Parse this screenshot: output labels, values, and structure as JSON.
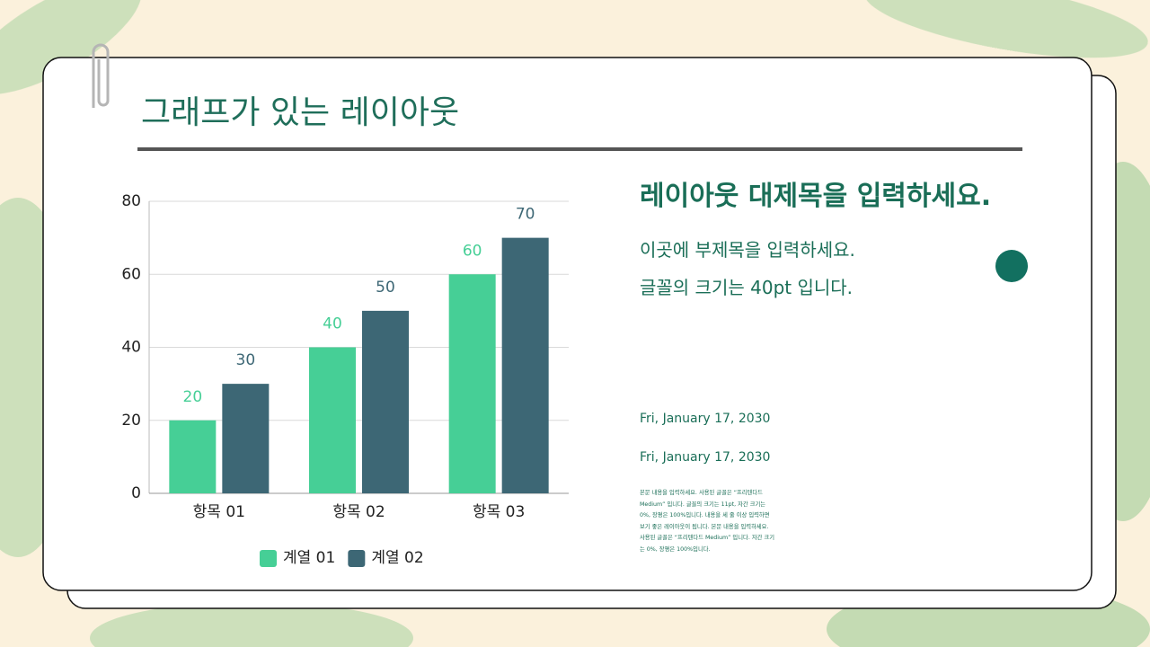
{
  "slide": {
    "title": "그래프가 있는 레이아웃",
    "heading": "레이아웃 대제목을 입력하세요.",
    "subtitle_lines": [
      "이곳에 부제목을 입력하세요.",
      "글꼴의 크기는 40pt 입니다."
    ],
    "dates": [
      "Fri, January 17, 2030",
      "Fri, January 17, 2030"
    ],
    "body": "본문 내용을 입력하세요. 사용된 글꼴은 “프리텐다드 Medium” 입니다. 글꼴의 크기는 11pt, 자간 크기는 0%, 장평은 100%입니다. 내용을 세 줄 이상 입력하면 보기 좋은 레이아웃이 됩니다. 본문 내용을 입력하세요. 사용된 글꼴은 “프리텐다드 Medium” 입니다. 자간 크기는 0%, 장평은 100%입니다."
  },
  "chart_data": {
    "type": "bar",
    "categories": [
      "항목 01",
      "항목 02",
      "항목 03"
    ],
    "series": [
      {
        "name": "계열 01",
        "color": "#46cf96",
        "values": [
          20,
          40,
          60
        ]
      },
      {
        "name": "계열 02",
        "color": "#3d6775",
        "values": [
          30,
          50,
          70
        ]
      }
    ],
    "ylim": [
      0,
      80
    ],
    "yticks": [
      0,
      20,
      40,
      60,
      80
    ],
    "grid": true,
    "legend": "bottom"
  }
}
